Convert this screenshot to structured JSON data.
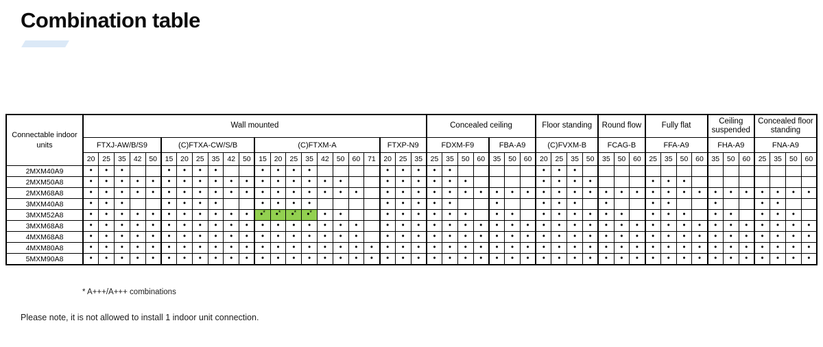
{
  "page": {
    "title": "Combination table"
  },
  "table": {
    "corner_label": "Connectable indoor units",
    "markers": {
      "dot": "•",
      "star": "*"
    },
    "highlight_color": "#92d050",
    "categories": [
      {
        "label": "Wall mounted",
        "models": [
          {
            "name": "FTXJ-AW/B/S9",
            "sizes": [
              20,
              25,
              35,
              42,
              50
            ]
          },
          {
            "name": "(C)FTXA-CW/S/B",
            "sizes": [
              15,
              20,
              25,
              35,
              42,
              50
            ]
          },
          {
            "name": "(C)FTXM-A",
            "sizes": [
              15,
              20,
              25,
              35,
              42,
              50,
              60,
              71
            ]
          },
          {
            "name": "FTXP-N9",
            "sizes": [
              20,
              25,
              35
            ]
          }
        ]
      },
      {
        "label": "Concealed ceiling",
        "models": [
          {
            "name": "FDXM-F9",
            "sizes": [
              25,
              35,
              50,
              60
            ]
          },
          {
            "name": "FBA-A9",
            "sizes": [
              35,
              50,
              60
            ]
          }
        ]
      },
      {
        "label": "Floor standing",
        "models": [
          {
            "name": "(C)FVXM-B",
            "sizes": [
              20,
              25,
              35,
              50
            ]
          }
        ]
      },
      {
        "label": "Round flow",
        "models": [
          {
            "name": "FCAG-B",
            "sizes": [
              35,
              50,
              60
            ]
          }
        ]
      },
      {
        "label": "Fully flat",
        "models": [
          {
            "name": "FFA-A9",
            "sizes": [
              25,
              35,
              50,
              60
            ]
          }
        ]
      },
      {
        "label": "Ceiling suspended",
        "models": [
          {
            "name": "FHA-A9",
            "sizes": [
              35,
              50,
              60
            ]
          }
        ]
      },
      {
        "label": "Concealed floor standing",
        "models": [
          {
            "name": "FNA-A9",
            "sizes": [
              25,
              35,
              50,
              60
            ]
          }
        ]
      }
    ],
    "rows": [
      {
        "label": "2MXM40A9",
        "cells": [
          1,
          1,
          1,
          0,
          0,
          1,
          1,
          1,
          1,
          0,
          0,
          1,
          1,
          1,
          1,
          0,
          0,
          0,
          0,
          1,
          1,
          1,
          1,
          1,
          0,
          0,
          0,
          0,
          0,
          1,
          1,
          1,
          0,
          0,
          0,
          0,
          0,
          0,
          0,
          0,
          0,
          0,
          0,
          0,
          0,
          0,
          0
        ]
      },
      {
        "label": "2MXM50A8",
        "cells": [
          1,
          1,
          1,
          1,
          1,
          1,
          1,
          1,
          1,
          1,
          1,
          1,
          1,
          1,
          1,
          1,
          1,
          0,
          0,
          1,
          1,
          1,
          1,
          1,
          1,
          0,
          0,
          0,
          0,
          1,
          1,
          1,
          1,
          0,
          0,
          0,
          1,
          1,
          1,
          0,
          0,
          0,
          0,
          0,
          0,
          0,
          0
        ]
      },
      {
        "label": "2MXM68A8",
        "cells": [
          1,
          1,
          1,
          1,
          1,
          1,
          1,
          1,
          1,
          1,
          1,
          1,
          1,
          1,
          1,
          1,
          1,
          1,
          0,
          1,
          1,
          1,
          1,
          1,
          1,
          1,
          1,
          1,
          1,
          1,
          1,
          1,
          1,
          1,
          1,
          1,
          1,
          1,
          1,
          1,
          1,
          1,
          1,
          1,
          1,
          1,
          1
        ]
      },
      {
        "label": "3MXM40A8",
        "cells": [
          1,
          1,
          1,
          0,
          0,
          1,
          1,
          1,
          1,
          0,
          0,
          1,
          1,
          1,
          1,
          0,
          0,
          0,
          0,
          1,
          1,
          1,
          1,
          1,
          0,
          0,
          1,
          0,
          0,
          1,
          1,
          1,
          0,
          1,
          0,
          0,
          1,
          1,
          0,
          0,
          1,
          0,
          0,
          1,
          1,
          0,
          0
        ]
      },
      {
        "label": "3MXM52A8",
        "cells": [
          1,
          1,
          1,
          1,
          1,
          1,
          1,
          1,
          1,
          1,
          1,
          2,
          2,
          2,
          2,
          1,
          1,
          0,
          0,
          1,
          1,
          1,
          1,
          1,
          1,
          0,
          1,
          1,
          0,
          1,
          1,
          1,
          1,
          1,
          1,
          0,
          1,
          1,
          1,
          0,
          1,
          1,
          0,
          1,
          1,
          1,
          0
        ]
      },
      {
        "label": "3MXM68A8",
        "cells": [
          1,
          1,
          1,
          1,
          1,
          1,
          1,
          1,
          1,
          1,
          1,
          1,
          1,
          1,
          1,
          1,
          1,
          1,
          0,
          1,
          1,
          1,
          1,
          1,
          1,
          1,
          1,
          1,
          1,
          1,
          1,
          1,
          1,
          1,
          1,
          1,
          1,
          1,
          1,
          1,
          1,
          1,
          1,
          1,
          1,
          1,
          1
        ]
      },
      {
        "label": "4MXM68A8",
        "cells": [
          1,
          1,
          1,
          1,
          1,
          1,
          1,
          1,
          1,
          1,
          1,
          1,
          1,
          1,
          1,
          1,
          1,
          1,
          0,
          1,
          1,
          1,
          1,
          1,
          1,
          1,
          1,
          1,
          1,
          1,
          1,
          1,
          1,
          1,
          1,
          1,
          1,
          1,
          1,
          1,
          1,
          1,
          1,
          1,
          1,
          1,
          1
        ]
      },
      {
        "label": "4MXM80A8",
        "cells": [
          1,
          1,
          1,
          1,
          1,
          1,
          1,
          1,
          1,
          1,
          1,
          1,
          1,
          1,
          1,
          1,
          1,
          1,
          1,
          1,
          1,
          1,
          1,
          1,
          1,
          1,
          1,
          1,
          1,
          1,
          1,
          1,
          1,
          1,
          1,
          1,
          1,
          1,
          1,
          1,
          1,
          1,
          1,
          1,
          1,
          1,
          1
        ]
      },
      {
        "label": "5MXM90A8",
        "cells": [
          1,
          1,
          1,
          1,
          1,
          1,
          1,
          1,
          1,
          1,
          1,
          1,
          1,
          1,
          1,
          1,
          1,
          1,
          1,
          1,
          1,
          1,
          1,
          1,
          1,
          1,
          1,
          1,
          1,
          1,
          1,
          1,
          1,
          1,
          1,
          1,
          1,
          1,
          1,
          1,
          1,
          1,
          1,
          1,
          1,
          1,
          1
        ]
      }
    ]
  },
  "footnotes": {
    "combinations": "* A+++/A+++ combinations",
    "note": "Please note, it is not allowed to install 1 indoor unit connection."
  }
}
